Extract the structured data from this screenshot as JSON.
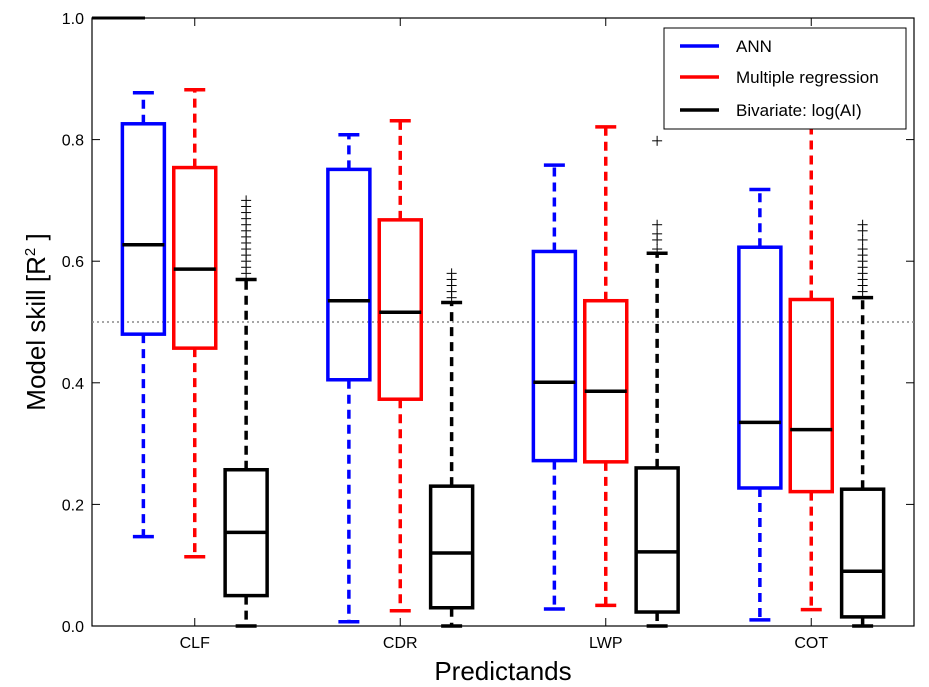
{
  "chart_data": {
    "type": "box",
    "title": "",
    "xlabel": "Predictands",
    "ylabel": "Model skill [R",
    "ylabel_sup": "2",
    "ylabel_suffix": " ]",
    "ylim": [
      0.0,
      1.0
    ],
    "yticks": [
      "0.0",
      "0.2",
      "0.4",
      "0.6",
      "0.8",
      "1.0"
    ],
    "categories": [
      "CLF",
      "CDR",
      "LWP",
      "COT"
    ],
    "reference_line": 0.5,
    "grid": false,
    "legend_position": "top-right",
    "series": [
      {
        "name": "ANN",
        "color": "#0000ff",
        "boxes": [
          {
            "min": 0.147,
            "q1": 0.48,
            "median": 0.627,
            "q3": 0.826,
            "max": 0.877
          },
          {
            "min": 0.007,
            "q1": 0.405,
            "median": 0.535,
            "q3": 0.751,
            "max": 0.808
          },
          {
            "min": 0.028,
            "q1": 0.272,
            "median": 0.401,
            "q3": 0.616,
            "max": 0.758
          },
          {
            "min": 0.01,
            "q1": 0.227,
            "median": 0.335,
            "q3": 0.623,
            "max": 0.718
          }
        ]
      },
      {
        "name": "Multiple regression",
        "color": "#ff0000",
        "boxes": [
          {
            "min": 0.114,
            "q1": 0.457,
            "median": 0.587,
            "q3": 0.754,
            "max": 0.882
          },
          {
            "min": 0.025,
            "q1": 0.373,
            "median": 0.516,
            "q3": 0.668,
            "max": 0.831
          },
          {
            "min": 0.034,
            "q1": 0.27,
            "median": 0.386,
            "q3": 0.535,
            "max": 0.821
          },
          {
            "min": 0.027,
            "q1": 0.221,
            "median": 0.323,
            "q3": 0.537,
            "max": 0.858
          }
        ]
      },
      {
        "name": "Bivariate: log(AI)",
        "color": "#000000",
        "boxes": [
          {
            "min": 0.0,
            "q1": 0.05,
            "median": 0.154,
            "q3": 0.257,
            "max": 0.57,
            "fliers": [
              0.58,
              0.59,
              0.6,
              0.61,
              0.62,
              0.63,
              0.64,
              0.65,
              0.66,
              0.67,
              0.68,
              0.69,
              0.7
            ]
          },
          {
            "min": 0.0,
            "q1": 0.03,
            "median": 0.12,
            "q3": 0.23,
            "max": 0.532,
            "fliers": [
              0.54,
              0.55,
              0.56,
              0.57,
              0.58
            ]
          },
          {
            "min": 0.0,
            "q1": 0.023,
            "median": 0.122,
            "q3": 0.26,
            "max": 0.613,
            "fliers": [
              0.62,
              0.635,
              0.645,
              0.66,
              0.798
            ]
          },
          {
            "min": 0.0,
            "q1": 0.015,
            "median": 0.09,
            "q3": 0.225,
            "max": 0.54,
            "fliers": [
              0.55,
              0.56,
              0.57,
              0.58,
              0.59,
              0.6,
              0.61,
              0.62,
              0.635,
              0.65,
              0.66,
              0.83
            ]
          }
        ]
      }
    ]
  }
}
